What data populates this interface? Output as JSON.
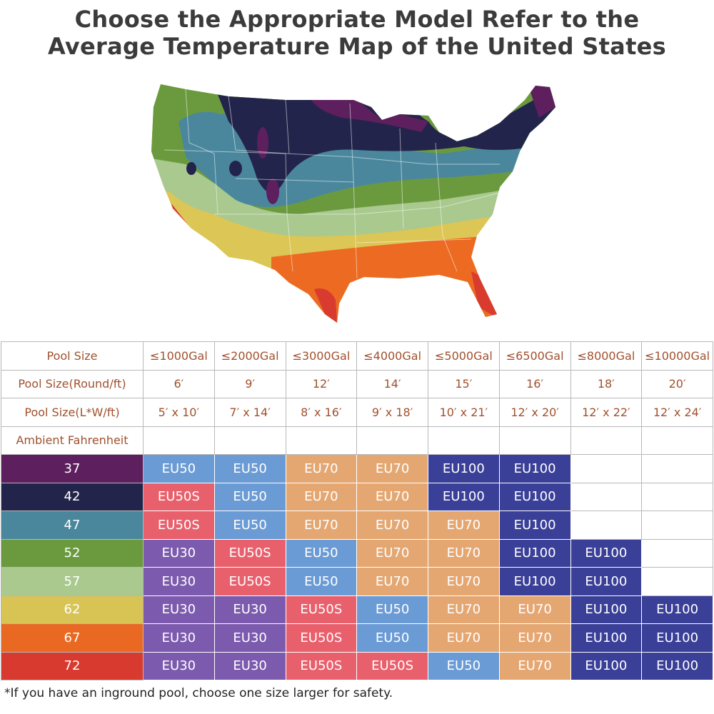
{
  "title": {
    "line1": "Choose the Appropriate Model Refer to the",
    "line2": "Average Temperature Map of the United States"
  },
  "map": {
    "description_label": "US average temperature map",
    "zone_colors": {
      "37": "#5e1f5e",
      "42": "#23244b",
      "47": "#4a879d",
      "52": "#6b9a3e",
      "57": "#a9c98f",
      "62": "#dcc656",
      "67": "#ec6a22",
      "72": "#d93b2f"
    }
  },
  "table": {
    "header_rows": [
      {
        "label": "Pool Size",
        "values": [
          "≤1000Gal",
          "≤2000Gal",
          "≤3000Gal",
          "≤4000Gal",
          "≤5000Gal",
          "≤6500Gal",
          "≤8000Gal",
          "≤10000Gal"
        ]
      },
      {
        "label": "Pool Size(Round/ft)",
        "values": [
          "6′",
          "9′",
          "12′",
          "14′",
          "15′",
          "16′",
          "18′",
          "20′"
        ]
      },
      {
        "label": "Pool Size(L*W/ft)",
        "values": [
          "5′ x 10′",
          "7′ x 14′",
          "8′ x 16′",
          "9′ x 18′",
          "10′ x 21′",
          "12′ x 20′",
          "12′ x 22′",
          "12′ x 24′"
        ]
      },
      {
        "label": "Ambient Fahrenheit",
        "values": [
          "",
          "",
          "",
          "",
          "",
          "",
          "",
          ""
        ]
      }
    ],
    "rows": [
      {
        "temp": "37",
        "color": "#5e1f5e",
        "models": [
          "EU50",
          "EU50",
          "EU70",
          "EU70",
          "EU100",
          "EU100",
          "",
          ""
        ]
      },
      {
        "temp": "42",
        "color": "#23244b",
        "models": [
          "EU50S",
          "EU50",
          "EU70",
          "EU70",
          "EU100",
          "EU100",
          "",
          ""
        ]
      },
      {
        "temp": "47",
        "color": "#4a879d",
        "models": [
          "EU50S",
          "EU50",
          "EU70",
          "EU70",
          "EU70",
          "EU100",
          "",
          ""
        ]
      },
      {
        "temp": "52",
        "color": "#6b9a3e",
        "models": [
          "EU30",
          "EU50S",
          "EU50",
          "EU70",
          "EU70",
          "EU100",
          "EU100",
          ""
        ]
      },
      {
        "temp": "57",
        "color": "#a9c98f",
        "models": [
          "EU30",
          "EU50S",
          "EU50",
          "EU70",
          "EU70",
          "EU100",
          "EU100",
          ""
        ]
      },
      {
        "temp": "62",
        "color": "#d8c455",
        "models": [
          "EU30",
          "EU30",
          "EU50S",
          "EU50",
          "EU70",
          "EU70",
          "EU100",
          "EU100"
        ]
      },
      {
        "temp": "67",
        "color": "#ea6922",
        "models": [
          "EU30",
          "EU30",
          "EU50S",
          "EU50",
          "EU70",
          "EU70",
          "EU100",
          "EU100"
        ]
      },
      {
        "temp": "72",
        "color": "#d83a30",
        "models": [
          "EU30",
          "EU30",
          "EU50S",
          "EU50S",
          "EU50",
          "EU70",
          "EU100",
          "EU100"
        ]
      }
    ],
    "model_colors": {
      "EU30": "#7c5aae",
      "EU50": "#6a9bd5",
      "EU50S": "#e9606d",
      "EU70": "#e5a772",
      "EU100": "#3a3f98"
    }
  },
  "footnote": "*If you have an inground pool, choose one size larger for safety."
}
